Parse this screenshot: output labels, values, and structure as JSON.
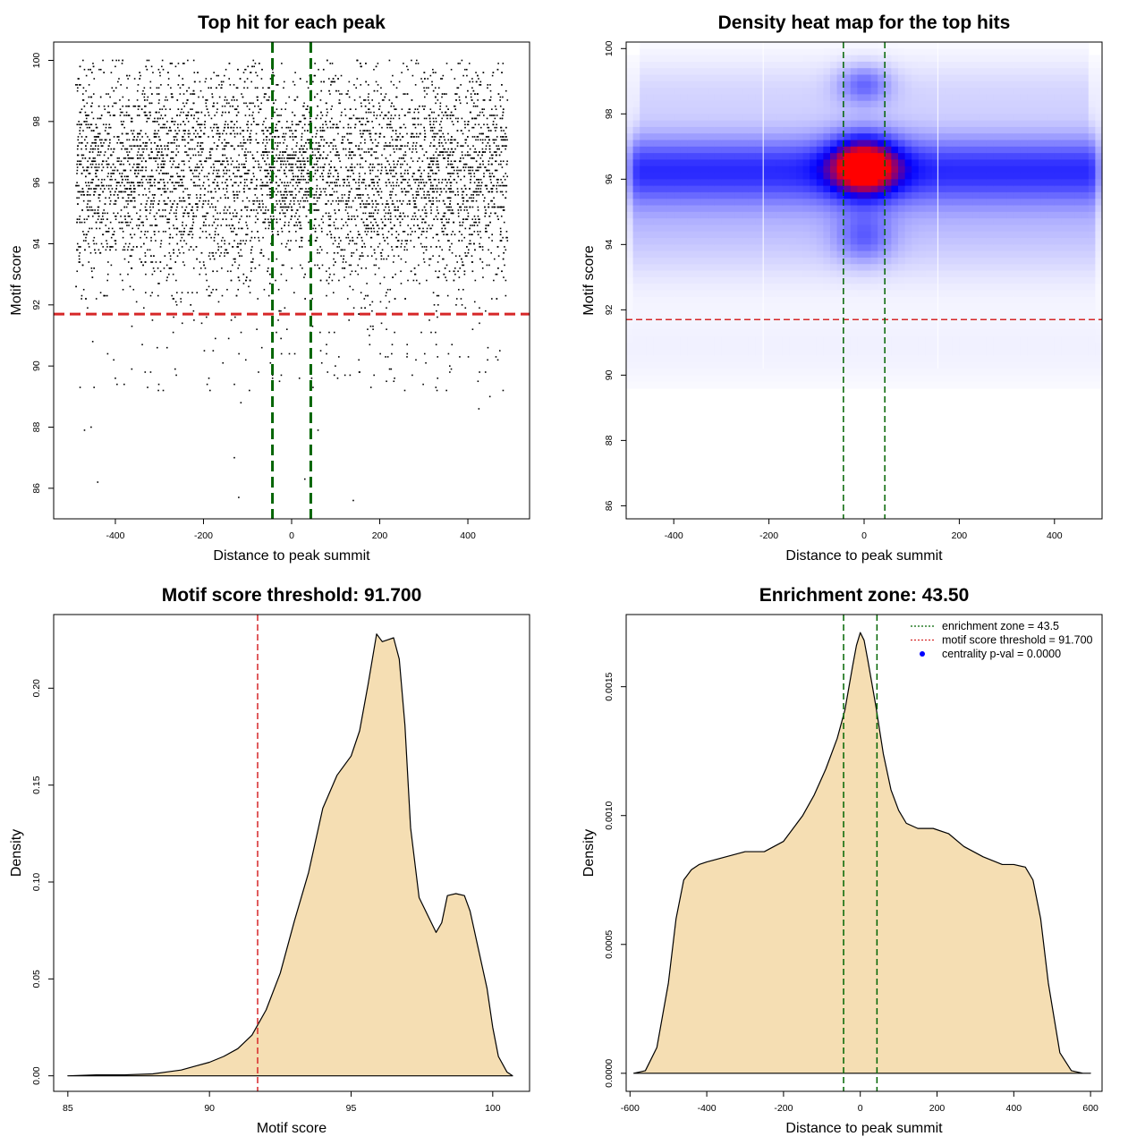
{
  "colors": {
    "axis": "#000000",
    "enrichment_line": "#006400",
    "threshold_line": "#d62728",
    "density_fill": "#f5deb3",
    "scatter_point": "#000000",
    "heat_low": "#ffffff",
    "heat_mid": "#0000ff",
    "heat_high": "#ff0000",
    "legend_marker": "#0000ff"
  },
  "chart_data": [
    {
      "id": "scatter",
      "type": "scatter",
      "title": "Top hit for each peak",
      "xlabel": "Distance to peak summit",
      "ylabel": "Motif score",
      "xlim": [
        -540,
        540
      ],
      "ylim": [
        85.0,
        100.6
      ],
      "xticks": [
        -400,
        -200,
        0,
        200,
        400
      ],
      "yticks": [
        86,
        88,
        90,
        92,
        94,
        96,
        98,
        100
      ],
      "x_range": [
        -490,
        490
      ],
      "n_points_approx": 6000,
      "dense_score_range": [
        91.7,
        100
      ],
      "peak_score": 96.3,
      "threshold": 91.7,
      "enrichment_zone": [
        -43.5,
        43.5
      ],
      "outliers": [
        [
          -470,
          87.9
        ],
        [
          -455,
          88.0
        ],
        [
          -440,
          86.2
        ],
        [
          -130,
          87.0
        ],
        [
          -120,
          85.7
        ],
        [
          -115,
          88.8
        ],
        [
          30,
          86.3
        ],
        [
          60,
          87.9
        ],
        [
          140,
          85.6
        ],
        [
          330,
          89.2
        ],
        [
          425,
          88.6
        ],
        [
          450,
          89.0
        ],
        [
          480,
          89.2
        ],
        [
          -480,
          89.3
        ],
        [
          -400,
          89.6
        ]
      ]
    },
    {
      "id": "heatmap",
      "type": "heatmap",
      "title": "Density heat map for the top hits",
      "xlabel": "Distance to peak summit",
      "ylabel": "Motif score",
      "xlim": [
        -500,
        500
      ],
      "ylim": [
        85.6,
        100.2
      ],
      "xticks": [
        -400,
        -200,
        0,
        200,
        400
      ],
      "yticks": [
        86,
        88,
        90,
        92,
        94,
        96,
        98,
        100
      ],
      "hotspot": {
        "x": 0,
        "y": 96.4
      },
      "threshold": 91.7,
      "enrichment_zone": [
        -43.5,
        43.5
      ],
      "faint_vertical_lines": [
        -212,
        155
      ]
    },
    {
      "id": "score_density",
      "type": "area",
      "title": "Motif score threshold: 91.700",
      "xlabel": "Motif score",
      "ylabel": "Density",
      "xlim": [
        84.5,
        101.3
      ],
      "ylim": [
        -0.008,
        0.238
      ],
      "xticks": [
        85,
        90,
        95,
        100
      ],
      "yticks": [
        0.0,
        0.05,
        0.1,
        0.15,
        0.2
      ],
      "ytick_labels": [
        "0.00",
        "0.05",
        "0.10",
        "0.15",
        "0.20"
      ],
      "threshold": 91.7,
      "x": [
        85.0,
        86.0,
        87.0,
        88.0,
        88.5,
        89.0,
        89.5,
        90.0,
        90.5,
        91.0,
        91.5,
        92.0,
        92.5,
        93.0,
        93.5,
        94.0,
        94.5,
        95.0,
        95.3,
        95.6,
        95.9,
        96.1,
        96.3,
        96.5,
        96.7,
        96.9,
        97.1,
        97.4,
        97.7,
        98.0,
        98.2,
        98.4,
        98.7,
        99.0,
        99.2,
        99.5,
        99.8,
        100.0,
        100.2,
        100.5,
        100.7
      ],
      "y": [
        0.0,
        0.0005,
        0.0005,
        0.001,
        0.002,
        0.003,
        0.005,
        0.007,
        0.01,
        0.014,
        0.021,
        0.034,
        0.053,
        0.08,
        0.105,
        0.138,
        0.155,
        0.165,
        0.178,
        0.202,
        0.228,
        0.224,
        0.225,
        0.226,
        0.215,
        0.181,
        0.128,
        0.092,
        0.083,
        0.074,
        0.079,
        0.093,
        0.094,
        0.093,
        0.085,
        0.065,
        0.045,
        0.025,
        0.01,
        0.002,
        0.0
      ]
    },
    {
      "id": "distance_density",
      "type": "area",
      "title": "Enrichment zone: 43.50",
      "xlabel": "Distance to peak summit",
      "ylabel": "Density",
      "xlim": [
        -610,
        630
      ],
      "ylim": [
        -7e-05,
        0.00178
      ],
      "xticks": [
        -600,
        -400,
        -200,
        0,
        200,
        400,
        600
      ],
      "yticks": [
        0.0,
        0.0005,
        0.001,
        0.0015
      ],
      "ytick_labels": [
        "0.0000",
        "0.0005",
        "0.0010",
        "0.0015"
      ],
      "enrichment_zone": [
        -43.5,
        43.5
      ],
      "x": [
        -590,
        -560,
        -530,
        -500,
        -480,
        -460,
        -440,
        -420,
        -400,
        -350,
        -300,
        -250,
        -200,
        -150,
        -120,
        -90,
        -60,
        -40,
        -20,
        -10,
        0,
        10,
        20,
        40,
        60,
        80,
        100,
        120,
        150,
        190,
        230,
        270,
        320,
        370,
        400,
        430,
        450,
        470,
        490,
        520,
        550,
        580,
        600
      ],
      "y": [
        0.0,
        1e-05,
        0.0001,
        0.00035,
        0.0006,
        0.00075,
        0.00079,
        0.00081,
        0.00082,
        0.00084,
        0.00086,
        0.00086,
        0.0009,
        0.001,
        0.00108,
        0.00118,
        0.0013,
        0.00141,
        0.00158,
        0.00166,
        0.00171,
        0.00168,
        0.0016,
        0.00143,
        0.00124,
        0.0011,
        0.00102,
        0.00097,
        0.00095,
        0.00095,
        0.00093,
        0.00088,
        0.00084,
        0.00081,
        0.00081,
        0.0008,
        0.00075,
        0.0006,
        0.00035,
        8e-05,
        1e-05,
        0.0,
        0.0
      ],
      "legend": {
        "position": "top-right",
        "entries": [
          {
            "label": "enrichment zone = 43.5",
            "kind": "dotted-line",
            "color": "#006400"
          },
          {
            "label": "motif score threshold = 91.700",
            "kind": "dotted-line",
            "color": "#d62728"
          },
          {
            "label": "centrality p-val = 0.0000",
            "kind": "point",
            "color": "#0000ff"
          }
        ]
      }
    }
  ]
}
